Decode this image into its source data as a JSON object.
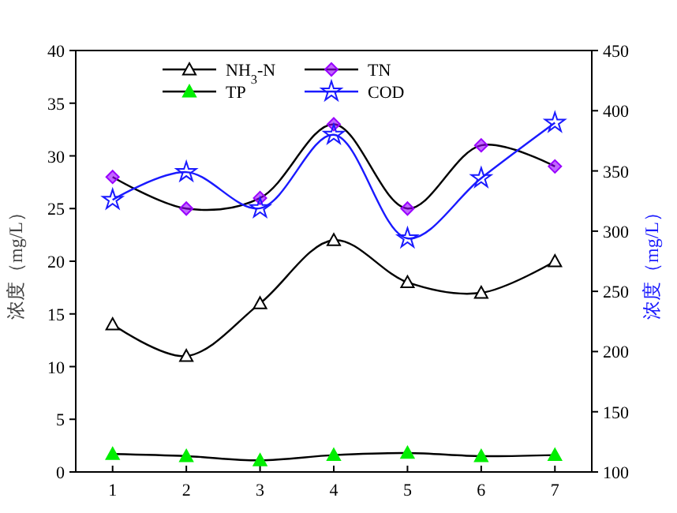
{
  "chart_data": {
    "type": "line",
    "ylabel": "浓度（mg/L）",
    "y2label": "浓度（mg/L）",
    "x": [
      1,
      2,
      3,
      4,
      5,
      6,
      7
    ],
    "xlim": [
      0.5,
      7.5
    ],
    "xticks": [
      1,
      2,
      3,
      4,
      5,
      6,
      7
    ],
    "ylim": [
      0,
      40
    ],
    "yticks": [
      0,
      5,
      10,
      15,
      20,
      25,
      30,
      35,
      40
    ],
    "y2lim": [
      100,
      450
    ],
    "y2ticks": [
      100,
      150,
      200,
      250,
      300,
      350,
      400,
      450
    ],
    "legend": "top",
    "series": [
      {
        "name": "NH$_{3}$-N",
        "color": "#000000",
        "marker": "triangle",
        "values": [
          14,
          11,
          16,
          22,
          18,
          17,
          20
        ]
      },
      {
        "name": "TN",
        "color": "#9900ff",
        "marker": "diamond",
        "values": [
          28,
          25,
          26,
          33,
          25,
          31,
          29
        ]
      },
      {
        "name": "TP",
        "color": "#00ee00",
        "marker": "triangle",
        "values": [
          1.7,
          1.5,
          1.1,
          1.6,
          1.8,
          1.5,
          1.6
        ]
      },
      {
        "name": "COD",
        "color": "#1a1aff",
        "marker": "star",
        "axis": "y2",
        "values": [
          326,
          349,
          319,
          380,
          294,
          344,
          390
        ]
      }
    ]
  }
}
